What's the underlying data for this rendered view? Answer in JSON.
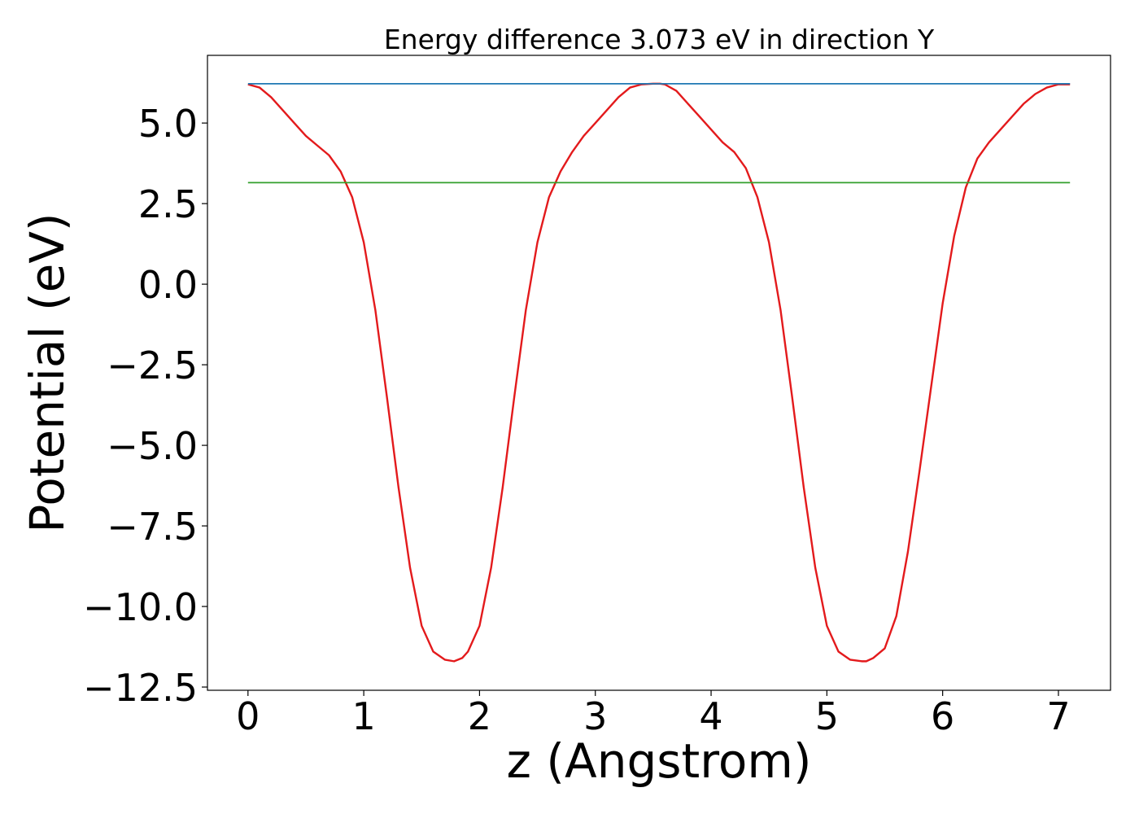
{
  "chart_data": {
    "type": "line",
    "title": "Energy difference 3.073 eV in direction Y",
    "xlabel": "z (Angstrom)",
    "ylabel": "Potential (eV)",
    "xlim": [
      -0.35,
      7.45
    ],
    "ylim": [
      -12.6,
      7.1
    ],
    "xticks": [
      0,
      1,
      2,
      3,
      4,
      5,
      6,
      7
    ],
    "xtick_labels": [
      "0",
      "1",
      "2",
      "3",
      "4",
      "5",
      "6",
      "7"
    ],
    "yticks": [
      5.0,
      2.5,
      0.0,
      -2.5,
      -5.0,
      -7.5,
      -10.0,
      -12.5
    ],
    "ytick_labels": [
      "5.0",
      "2.5",
      "0.0",
      "−2.5",
      "−5.0",
      "−7.5",
      "−10.0",
      "−12.5"
    ],
    "grid": false,
    "legend": "none",
    "series": [
      {
        "color": "#e31a1c",
        "x": [
          0.0,
          0.1,
          0.2,
          0.3,
          0.4,
          0.5,
          0.6,
          0.7,
          0.8,
          0.9,
          1.0,
          1.1,
          1.2,
          1.3,
          1.4,
          1.5,
          1.6,
          1.7,
          1.78,
          1.85,
          1.9,
          2.0,
          2.1,
          2.2,
          2.3,
          2.4,
          2.5,
          2.6,
          2.7,
          2.8,
          2.9,
          3.0,
          3.1,
          3.2,
          3.3,
          3.4,
          3.5,
          3.56,
          3.6,
          3.7,
          3.8,
          3.9,
          4.0,
          4.1,
          4.2,
          4.3,
          4.4,
          4.5,
          4.6,
          4.7,
          4.8,
          4.9,
          5.0,
          5.1,
          5.2,
          5.3,
          5.34,
          5.4,
          5.5,
          5.6,
          5.7,
          5.8,
          5.9,
          6.0,
          6.1,
          6.2,
          6.3,
          6.4,
          6.5,
          6.6,
          6.7,
          6.8,
          6.9,
          7.0,
          7.1
        ],
        "y": [
          6.2,
          6.1,
          5.8,
          5.4,
          5.0,
          4.6,
          4.3,
          4.0,
          3.5,
          2.7,
          1.3,
          -0.8,
          -3.5,
          -6.3,
          -8.8,
          -10.6,
          -11.4,
          -11.65,
          -11.7,
          -11.6,
          -11.4,
          -10.6,
          -8.8,
          -6.3,
          -3.5,
          -0.8,
          1.3,
          2.7,
          3.5,
          4.1,
          4.6,
          5.0,
          5.4,
          5.8,
          6.1,
          6.2,
          6.22,
          6.22,
          6.2,
          6.0,
          5.6,
          5.2,
          4.8,
          4.4,
          4.1,
          3.6,
          2.7,
          1.3,
          -0.8,
          -3.5,
          -6.3,
          -8.8,
          -10.6,
          -11.4,
          -11.65,
          -11.7,
          -11.7,
          -11.6,
          -11.3,
          -10.3,
          -8.3,
          -5.8,
          -3.2,
          -0.6,
          1.5,
          3.0,
          3.9,
          4.4,
          4.8,
          5.2,
          5.6,
          5.9,
          6.1,
          6.2,
          6.2
        ]
      },
      {
        "color": "#1f78b4",
        "x": [
          0.0,
          7.1
        ],
        "y": [
          6.22,
          6.22
        ]
      },
      {
        "color": "#33a02c",
        "x": [
          0.0,
          7.1
        ],
        "y": [
          3.15,
          3.15
        ]
      }
    ]
  }
}
